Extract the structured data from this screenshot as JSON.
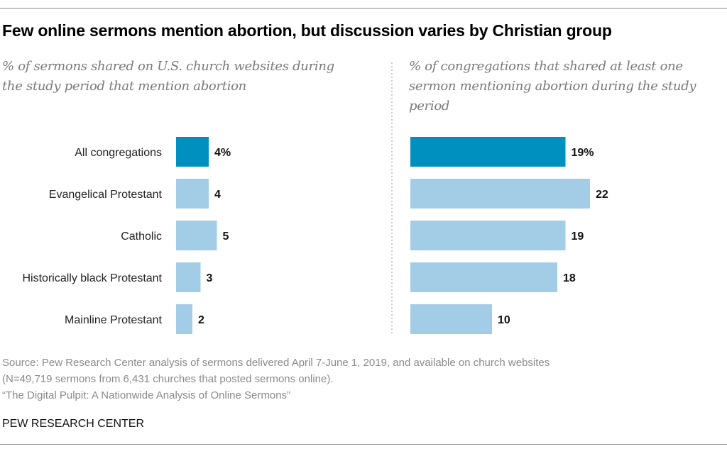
{
  "title": "Few online sermons mention abortion, but discussion varies by Christian group",
  "colors": {
    "highlight": "#0090c0",
    "bar": "#a3cde7",
    "divider": "#999999"
  },
  "chart_data": [
    {
      "type": "bar",
      "orientation": "horizontal",
      "title": "% of sermons shared on U.S. church websites during the study period that mention abortion",
      "categories": [
        "All congregations",
        "Evangelical Protestant",
        "Catholic",
        "Historically black Protestant",
        "Mainline Protestant"
      ],
      "values": [
        4,
        4,
        5,
        3,
        2
      ],
      "data_labels": [
        "4%",
        "4",
        "5",
        "3",
        "2"
      ],
      "grid": false
    },
    {
      "type": "bar",
      "orientation": "horizontal",
      "title": "% of congregations that shared at least one sermon mentioning abortion during the study period",
      "categories": [
        "All congregations",
        "Evangelical Protestant",
        "Catholic",
        "Historically black Protestant",
        "Mainline Protestant"
      ],
      "values": [
        19,
        22,
        19,
        18,
        10
      ],
      "data_labels": [
        "19%",
        "22",
        "19",
        "18",
        "10"
      ],
      "grid": false
    }
  ],
  "footer": {
    "source_lines": [
      "Source: Pew Research Center analysis of sermons delivered April 7-June 1, 2019, and available on church websites",
      "(N=49,719 sermons from 6,431 churches that posted sermons online).",
      "“The Digital Pulpit: A Nationwide Analysis of Online Sermons”"
    ],
    "brand": "PEW RESEARCH CENTER"
  }
}
